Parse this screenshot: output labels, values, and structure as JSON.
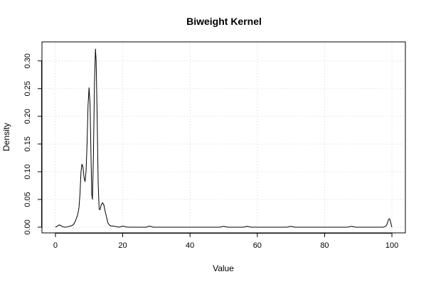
{
  "chart_data": {
    "type": "line",
    "title": "Biweight Kernel",
    "xlabel": "Value",
    "ylabel": "Density",
    "xlim": [
      -4.0,
      104.0
    ],
    "ylim": [
      -0.0103,
      0.3343
    ],
    "grid": true,
    "x_ticks": [
      0,
      20,
      40,
      60,
      80,
      100
    ],
    "y_ticks": [
      0.0,
      0.05,
      0.1,
      0.15,
      0.2,
      0.25,
      0.3
    ],
    "y_tick_labels": [
      "0.00",
      "0.05",
      "0.10",
      "0.15",
      "0.20",
      "0.25",
      "0.30"
    ],
    "series": [
      {
        "x": [
          0.0,
          0.6,
          1.1,
          1.6,
          2.1,
          2.8,
          3.6,
          4.4,
          5.0,
          5.5,
          6.0,
          6.6,
          7.0,
          7.3,
          7.6,
          7.9,
          8.2,
          8.5,
          8.8,
          9.1,
          9.4,
          9.7,
          10.0,
          10.3,
          10.6,
          10.8,
          11.0,
          11.3,
          11.6,
          11.9,
          12.1,
          12.4,
          12.7,
          13.0,
          13.3,
          13.6,
          14.0,
          14.4,
          14.8,
          15.2,
          15.6,
          16.0,
          16.6,
          17.2,
          18.0,
          19.0,
          20.0,
          21.0,
          22.0,
          25.0,
          27.0,
          28.0,
          29.0,
          32.0,
          40.0,
          47.0,
          48.8,
          50.0,
          51.2,
          53.0,
          55.8,
          57.0,
          58.2,
          60.0,
          65.0,
          68.8,
          70.0,
          71.2,
          75.0,
          80.0,
          85.0,
          86.8,
          88.0,
          89.2,
          92.0,
          96.0,
          97.5,
          98.2,
          98.6,
          99.0,
          99.3,
          99.6,
          99.8,
          100.0
        ],
        "y": [
          0.0,
          0.002,
          0.004,
          0.003,
          0.001,
          0.0,
          0.0005,
          0.002,
          0.003,
          0.006,
          0.012,
          0.022,
          0.035,
          0.06,
          0.1,
          0.114,
          0.108,
          0.09,
          0.082,
          0.1,
          0.15,
          0.22,
          0.252,
          0.22,
          0.12,
          0.06,
          0.05,
          0.13,
          0.26,
          0.322,
          0.3,
          0.2,
          0.08,
          0.032,
          0.032,
          0.04,
          0.044,
          0.04,
          0.028,
          0.018,
          0.008,
          0.004,
          0.002,
          0.002,
          0.001,
          0.0,
          0.002,
          0.0005,
          0.0,
          0.0,
          0.0,
          0.002,
          0.0,
          0.0,
          0.0,
          0.0,
          0.0,
          0.0015,
          0.0,
          0.0,
          0.0,
          0.0015,
          0.0,
          0.0,
          0.0,
          0.0,
          0.0015,
          0.0,
          0.0,
          0.0,
          0.0,
          0.0,
          0.0015,
          0.0,
          0.0,
          0.0,
          0.0,
          0.002,
          0.006,
          0.014,
          0.015,
          0.01,
          0.004,
          0.0
        ]
      }
    ]
  }
}
